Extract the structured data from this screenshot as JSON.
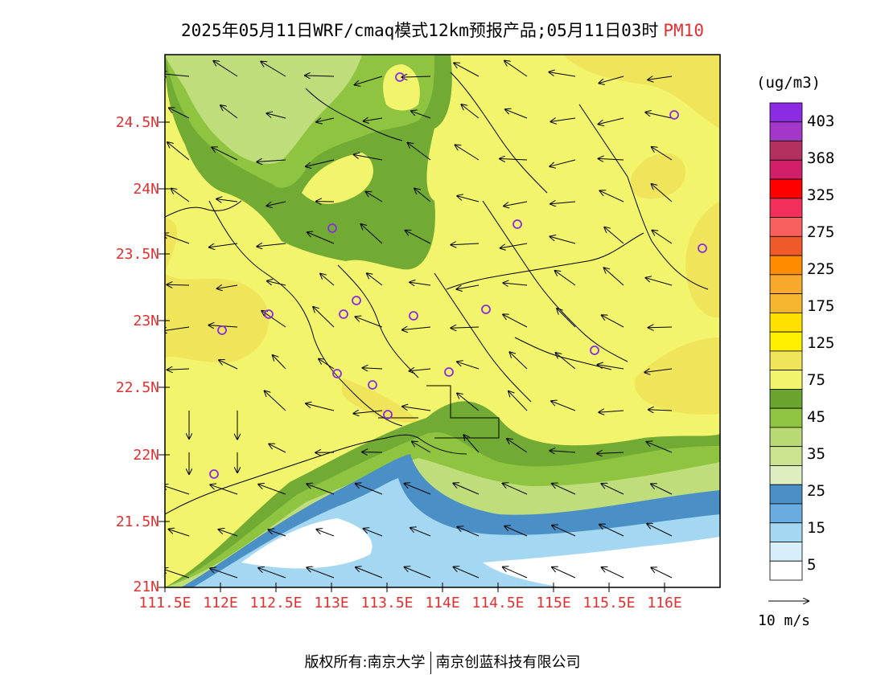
{
  "title": {
    "main": "2025年05月11日WRF/cmaq模式12km预报产品;05月11日03时",
    "product": "PM10"
  },
  "map": {
    "lat_ticks": [
      "21N",
      "21.5N",
      "22N",
      "22.5N",
      "23N",
      "23.5N",
      "24N",
      "24.5N"
    ],
    "lon_ticks": [
      "111.5E",
      "112E",
      "112.5E",
      "113E",
      "113.5E",
      "114E",
      "114.5E",
      "115E",
      "115.5E",
      "116E"
    ],
    "colors": {
      "background_pm10": "#f2f46c",
      "zone_75_125": "#f0e45a",
      "zone_45_75": "#72ab34",
      "zone_35_45": "#8fc441",
      "zone_25_35": "#bfdd7a",
      "zone_15_25": "#4a8fc6",
      "zone_5_15": "#a4d7f2",
      "zone_0_5": "#ffffff",
      "station_marker": "#8a2be2"
    }
  },
  "colorbar": {
    "units": "(ug/m3)",
    "levels": [
      "403",
      "368",
      "325",
      "275",
      "225",
      "175",
      "125",
      "75",
      "45",
      "35",
      "25",
      "15",
      "5"
    ],
    "colors": [
      "#8b2be2",
      "#a338c8",
      "#b33060",
      "#d0206a",
      "#ff0000",
      "#f0305a",
      "#f86060",
      "#f05a2a",
      "#ff8c00",
      "#f6a92a",
      "#f4b62e",
      "#ffe000",
      "#ffef00",
      "#f0e45a",
      "#f2f46c",
      "#6aa32e",
      "#8fc441",
      "#b8d973",
      "#c9e38e",
      "#dfeec0",
      "#4a8fc6",
      "#6aace0",
      "#a4d7f2",
      "#d8effa",
      "#ffffff"
    ]
  },
  "wind_reference": "10 m/s",
  "footer": {
    "left": "版权所有:南京大学",
    "right": "南京创蓝科技有限公司"
  }
}
